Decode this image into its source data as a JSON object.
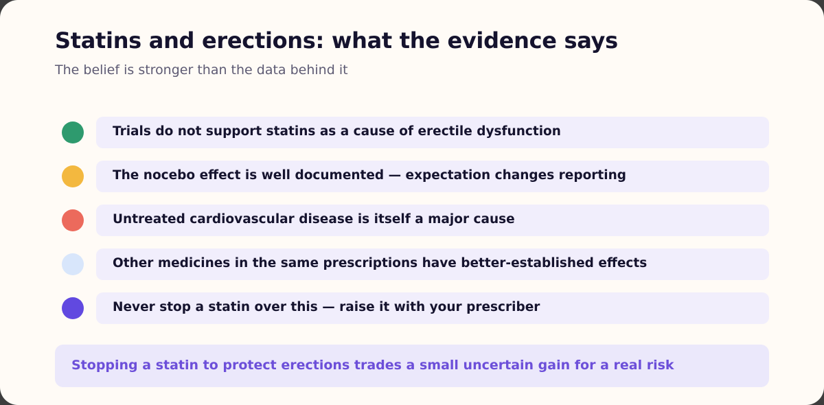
{
  "header": {
    "title": "Statins and erections: what the evidence says",
    "subtitle": "The belief is stronger than the data behind it"
  },
  "points": [
    {
      "text": "Trials do not support statins as a cause of erectile dysfunction",
      "color": "#2e9a6e"
    },
    {
      "text": "The nocebo effect is well documented — expectation changes reporting",
      "color": "#f3b83f"
    },
    {
      "text": "Untreated cardiovascular disease is itself a major cause",
      "color": "#ec6a5c"
    },
    {
      "text": "Other medicines in the same prescriptions have better-established effects",
      "color": "#d8e6fb"
    },
    {
      "text": "Never stop a statin over this — raise it with your prescriber",
      "color": "#6149e0"
    }
  ],
  "callout": {
    "text": "Stopping a statin to protect erections trades a small uncertain gain for a real risk"
  }
}
